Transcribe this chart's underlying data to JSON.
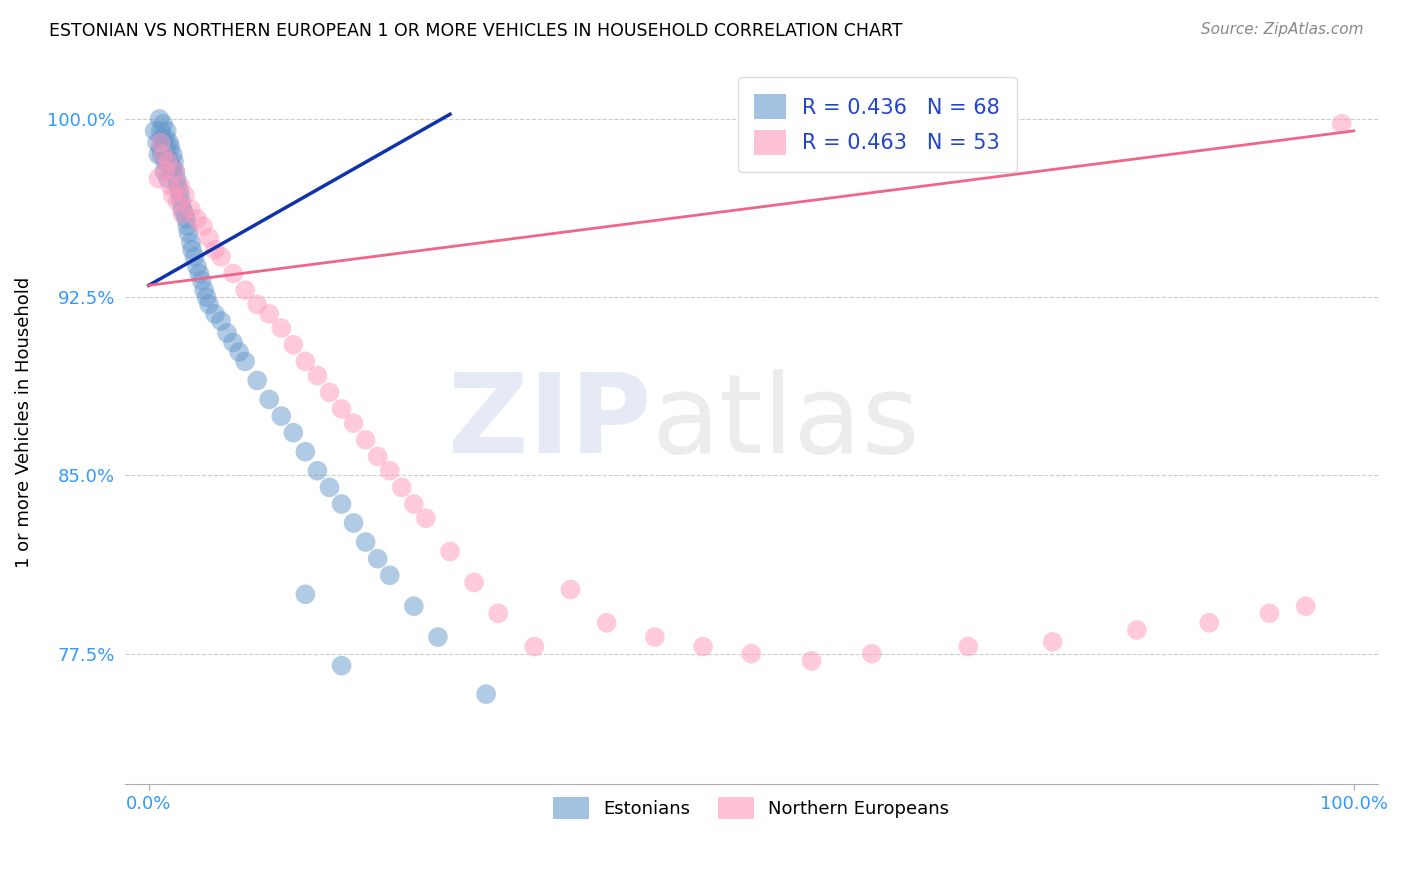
{
  "title": "ESTONIAN VS NORTHERN EUROPEAN 1 OR MORE VEHICLES IN HOUSEHOLD CORRELATION CHART",
  "source": "Source: ZipAtlas.com",
  "ylabel": "1 or more Vehicles in Household",
  "ylim": [
    0.72,
    1.025
  ],
  "xlim": [
    -0.02,
    1.02
  ],
  "yticks": [
    0.775,
    0.85,
    0.925,
    1.0
  ],
  "ytick_labels": [
    "77.5%",
    "85.0%",
    "92.5%",
    "100.0%"
  ],
  "xtick_labels": [
    "0.0%",
    "100.0%"
  ],
  "legend_r_blue": "R = 0.436",
  "legend_n_blue": "N = 68",
  "legend_r_pink": "R = 0.463",
  "legend_n_pink": "N = 53",
  "blue_color": "#6699CC",
  "pink_color": "#FF99BB",
  "blue_line_color": "#1133AA",
  "pink_line_color": "#EE6688",
  "blue_scatter_x": [
    0.005,
    0.007,
    0.008,
    0.009,
    0.01,
    0.01,
    0.011,
    0.011,
    0.012,
    0.012,
    0.013,
    0.013,
    0.014,
    0.014,
    0.015,
    0.015,
    0.016,
    0.016,
    0.017,
    0.017,
    0.018,
    0.019,
    0.02,
    0.02,
    0.021,
    0.022,
    0.023,
    0.024,
    0.025,
    0.026,
    0.027,
    0.028,
    0.03,
    0.031,
    0.032,
    0.033,
    0.035,
    0.036,
    0.038,
    0.04,
    0.042,
    0.044,
    0.046,
    0.048,
    0.05,
    0.055,
    0.06,
    0.065,
    0.07,
    0.075,
    0.08,
    0.09,
    0.1,
    0.11,
    0.12,
    0.13,
    0.14,
    0.15,
    0.16,
    0.17,
    0.18,
    0.19,
    0.2,
    0.22,
    0.24,
    0.28,
    0.13,
    0.16
  ],
  "blue_scatter_y": [
    0.995,
    0.99,
    0.985,
    1.0,
    0.995,
    0.988,
    0.992,
    0.985,
    0.998,
    0.99,
    0.985,
    0.978,
    0.992,
    0.982,
    0.995,
    0.988,
    0.982,
    0.975,
    0.99,
    0.982,
    0.988,
    0.98,
    0.985,
    0.978,
    0.982,
    0.978,
    0.975,
    0.972,
    0.97,
    0.968,
    0.965,
    0.962,
    0.96,
    0.958,
    0.955,
    0.952,
    0.948,
    0.945,
    0.942,
    0.938,
    0.935,
    0.932,
    0.928,
    0.925,
    0.922,
    0.918,
    0.915,
    0.91,
    0.906,
    0.902,
    0.898,
    0.89,
    0.882,
    0.875,
    0.868,
    0.86,
    0.852,
    0.845,
    0.838,
    0.83,
    0.822,
    0.815,
    0.808,
    0.795,
    0.782,
    0.758,
    0.8,
    0.77
  ],
  "pink_scatter_x": [
    0.008,
    0.01,
    0.012,
    0.014,
    0.016,
    0.018,
    0.02,
    0.022,
    0.024,
    0.026,
    0.028,
    0.03,
    0.035,
    0.04,
    0.045,
    0.05,
    0.055,
    0.06,
    0.07,
    0.08,
    0.09,
    0.1,
    0.11,
    0.12,
    0.13,
    0.14,
    0.15,
    0.16,
    0.17,
    0.18,
    0.19,
    0.2,
    0.21,
    0.22,
    0.23,
    0.25,
    0.27,
    0.29,
    0.32,
    0.35,
    0.38,
    0.42,
    0.46,
    0.5,
    0.55,
    0.6,
    0.68,
    0.75,
    0.82,
    0.88,
    0.93,
    0.96,
    0.99
  ],
  "pink_scatter_y": [
    0.975,
    0.99,
    0.985,
    0.978,
    0.982,
    0.972,
    0.968,
    0.978,
    0.965,
    0.972,
    0.96,
    0.968,
    0.962,
    0.958,
    0.955,
    0.95,
    0.945,
    0.942,
    0.935,
    0.928,
    0.922,
    0.918,
    0.912,
    0.905,
    0.898,
    0.892,
    0.885,
    0.878,
    0.872,
    0.865,
    0.858,
    0.852,
    0.845,
    0.838,
    0.832,
    0.818,
    0.805,
    0.792,
    0.778,
    0.802,
    0.788,
    0.782,
    0.778,
    0.775,
    0.772,
    0.775,
    0.778,
    0.78,
    0.785,
    0.788,
    0.792,
    0.795,
    0.998
  ]
}
